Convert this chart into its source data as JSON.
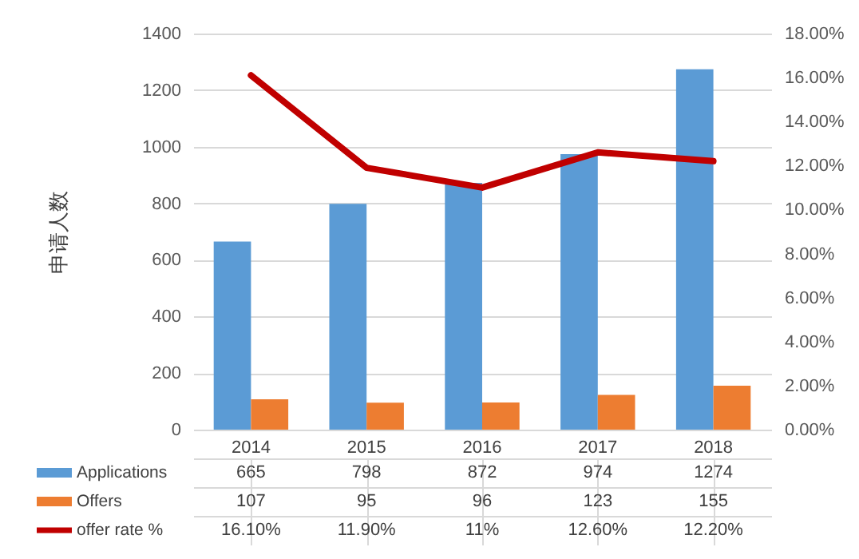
{
  "chart_data": {
    "type": "bar",
    "ylabel": "申请人数",
    "categories": [
      "2014",
      "2015",
      "2016",
      "2017",
      "2018"
    ],
    "series": [
      {
        "name": "Applications",
        "color": "#5b9bd5",
        "values": [
          665,
          798,
          872,
          974,
          1274
        ],
        "value_labels": [
          "665",
          "798",
          "872",
          "974",
          "1274"
        ]
      },
      {
        "name": "Offers",
        "color": "#ed7d31",
        "values": [
          107,
          95,
          96,
          123,
          155
        ],
        "value_labels": [
          "107",
          "95",
          "96",
          "123",
          "155"
        ]
      },
      {
        "name": "offer rate %",
        "type": "line",
        "axis": "y2",
        "color": "#c00000",
        "values": [
          16.1,
          11.9,
          11,
          12.6,
          12.2
        ],
        "value_labels": [
          "16.10%",
          "11.90%",
          "11%",
          "12.60%",
          "12.20%"
        ]
      }
    ],
    "ylim": [
      0,
      1400
    ],
    "yticks": [
      0,
      200,
      400,
      600,
      800,
      1000,
      1200,
      1400
    ],
    "y2lim": [
      0,
      18
    ],
    "y2ticks": [
      {
        "value": 0,
        "label": "0.00%"
      },
      {
        "value": 2,
        "label": "2.00%"
      },
      {
        "value": 4,
        "label": "4.00%"
      },
      {
        "value": 6,
        "label": "6.00%"
      },
      {
        "value": 8,
        "label": "8.00%"
      },
      {
        "value": 10,
        "label": "10.00%"
      },
      {
        "value": 12,
        "label": "12.00%"
      },
      {
        "value": 14,
        "label": "14.00%"
      },
      {
        "value": 16,
        "label": "16.00%"
      },
      {
        "value": 18,
        "label": "18.00%"
      }
    ],
    "grid": "y",
    "legend": "bottom left"
  }
}
